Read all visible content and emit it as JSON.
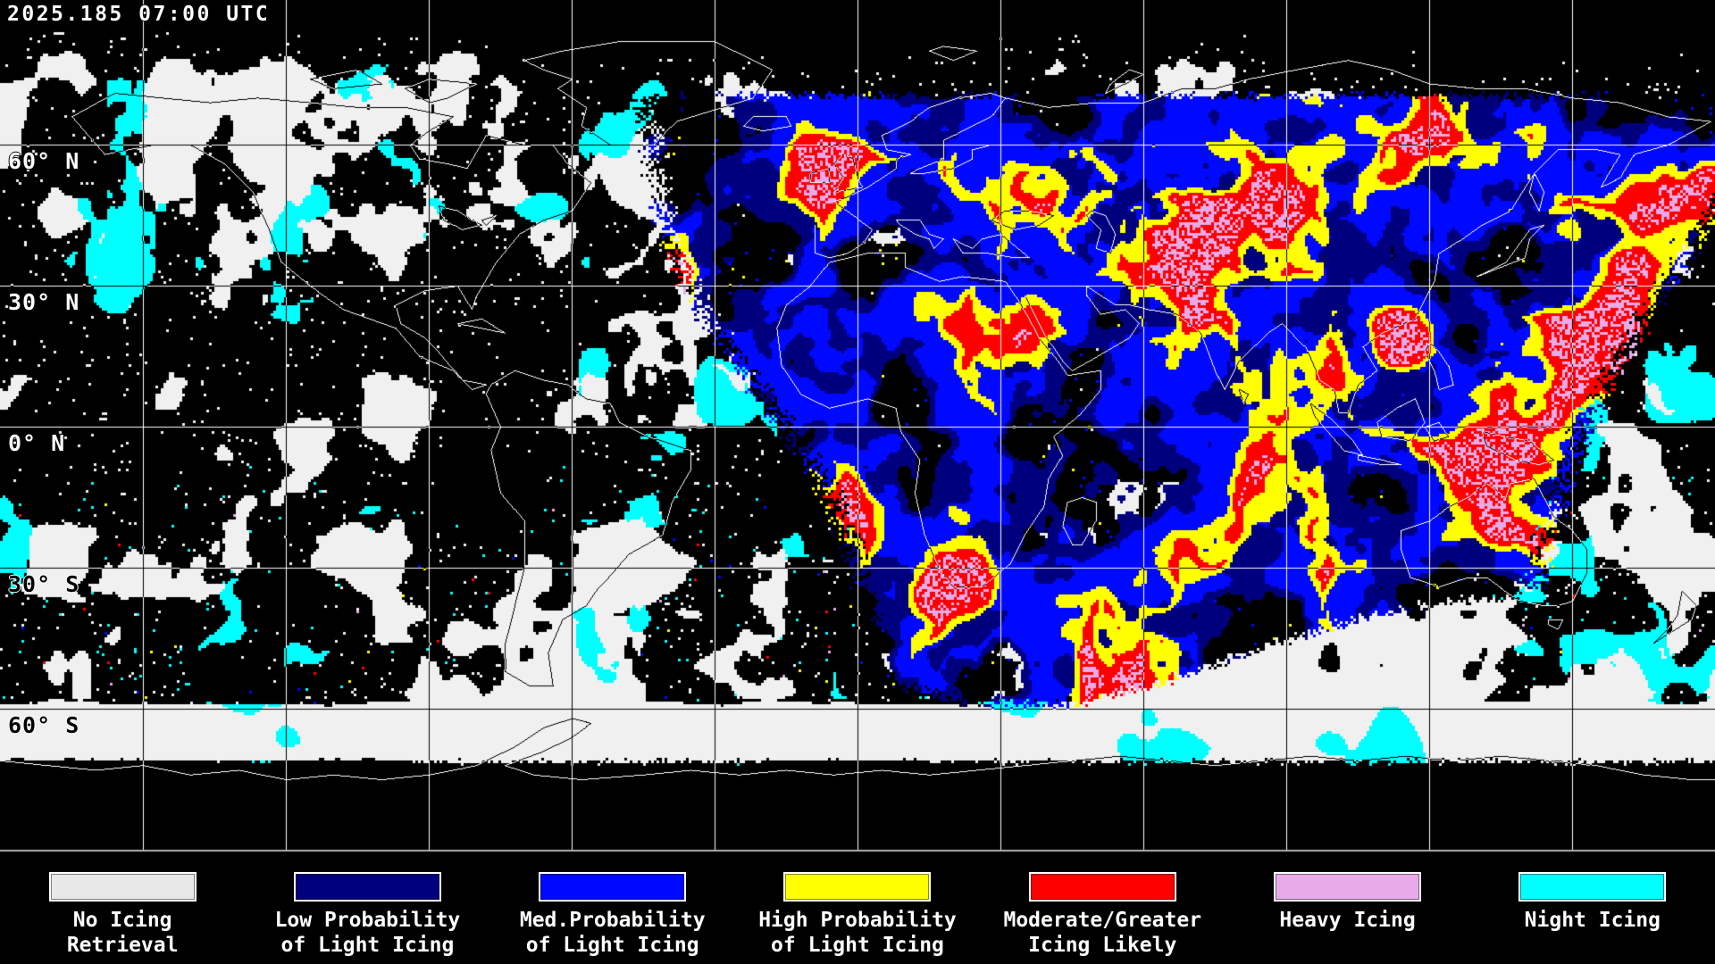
{
  "header": {
    "timestamp": "2025.185 07:00 UTC"
  },
  "map": {
    "latitude_labels": [
      {
        "text": "60° N"
      },
      {
        "text": "30° N"
      },
      {
        "text": "0° N"
      },
      {
        "text": "30° S"
      },
      {
        "text": "60° S"
      }
    ],
    "colors": {
      "background": "#000000",
      "no_icing": "#f0f0f0",
      "low_prob": "#00007f",
      "med_prob": "#0008ff",
      "high_prob": "#ffff00",
      "moderate": "#ff0000",
      "heavy": "#e8aae8",
      "night": "#00ffff",
      "coastline": "#ffffff",
      "gridline": "#ffffff"
    }
  },
  "legend": {
    "items": [
      {
        "color": "#e8e8e8",
        "line1": "No Icing",
        "line2": "Retrieval"
      },
      {
        "color": "#00007f",
        "line1": "Low Probability",
        "line2": "of Light Icing"
      },
      {
        "color": "#0008ff",
        "line1": "Med.Probability",
        "line2": "of Light Icing"
      },
      {
        "color": "#ffff00",
        "line1": "High Probability",
        "line2": "of Light Icing"
      },
      {
        "color": "#ff0000",
        "line1": "Moderate/Greater",
        "line2": "Icing Likely"
      },
      {
        "color": "#e8aae8",
        "line1": "Heavy Icing",
        "line2": ""
      },
      {
        "color": "#00ffff",
        "line1": "Night Icing",
        "line2": ""
      }
    ]
  }
}
